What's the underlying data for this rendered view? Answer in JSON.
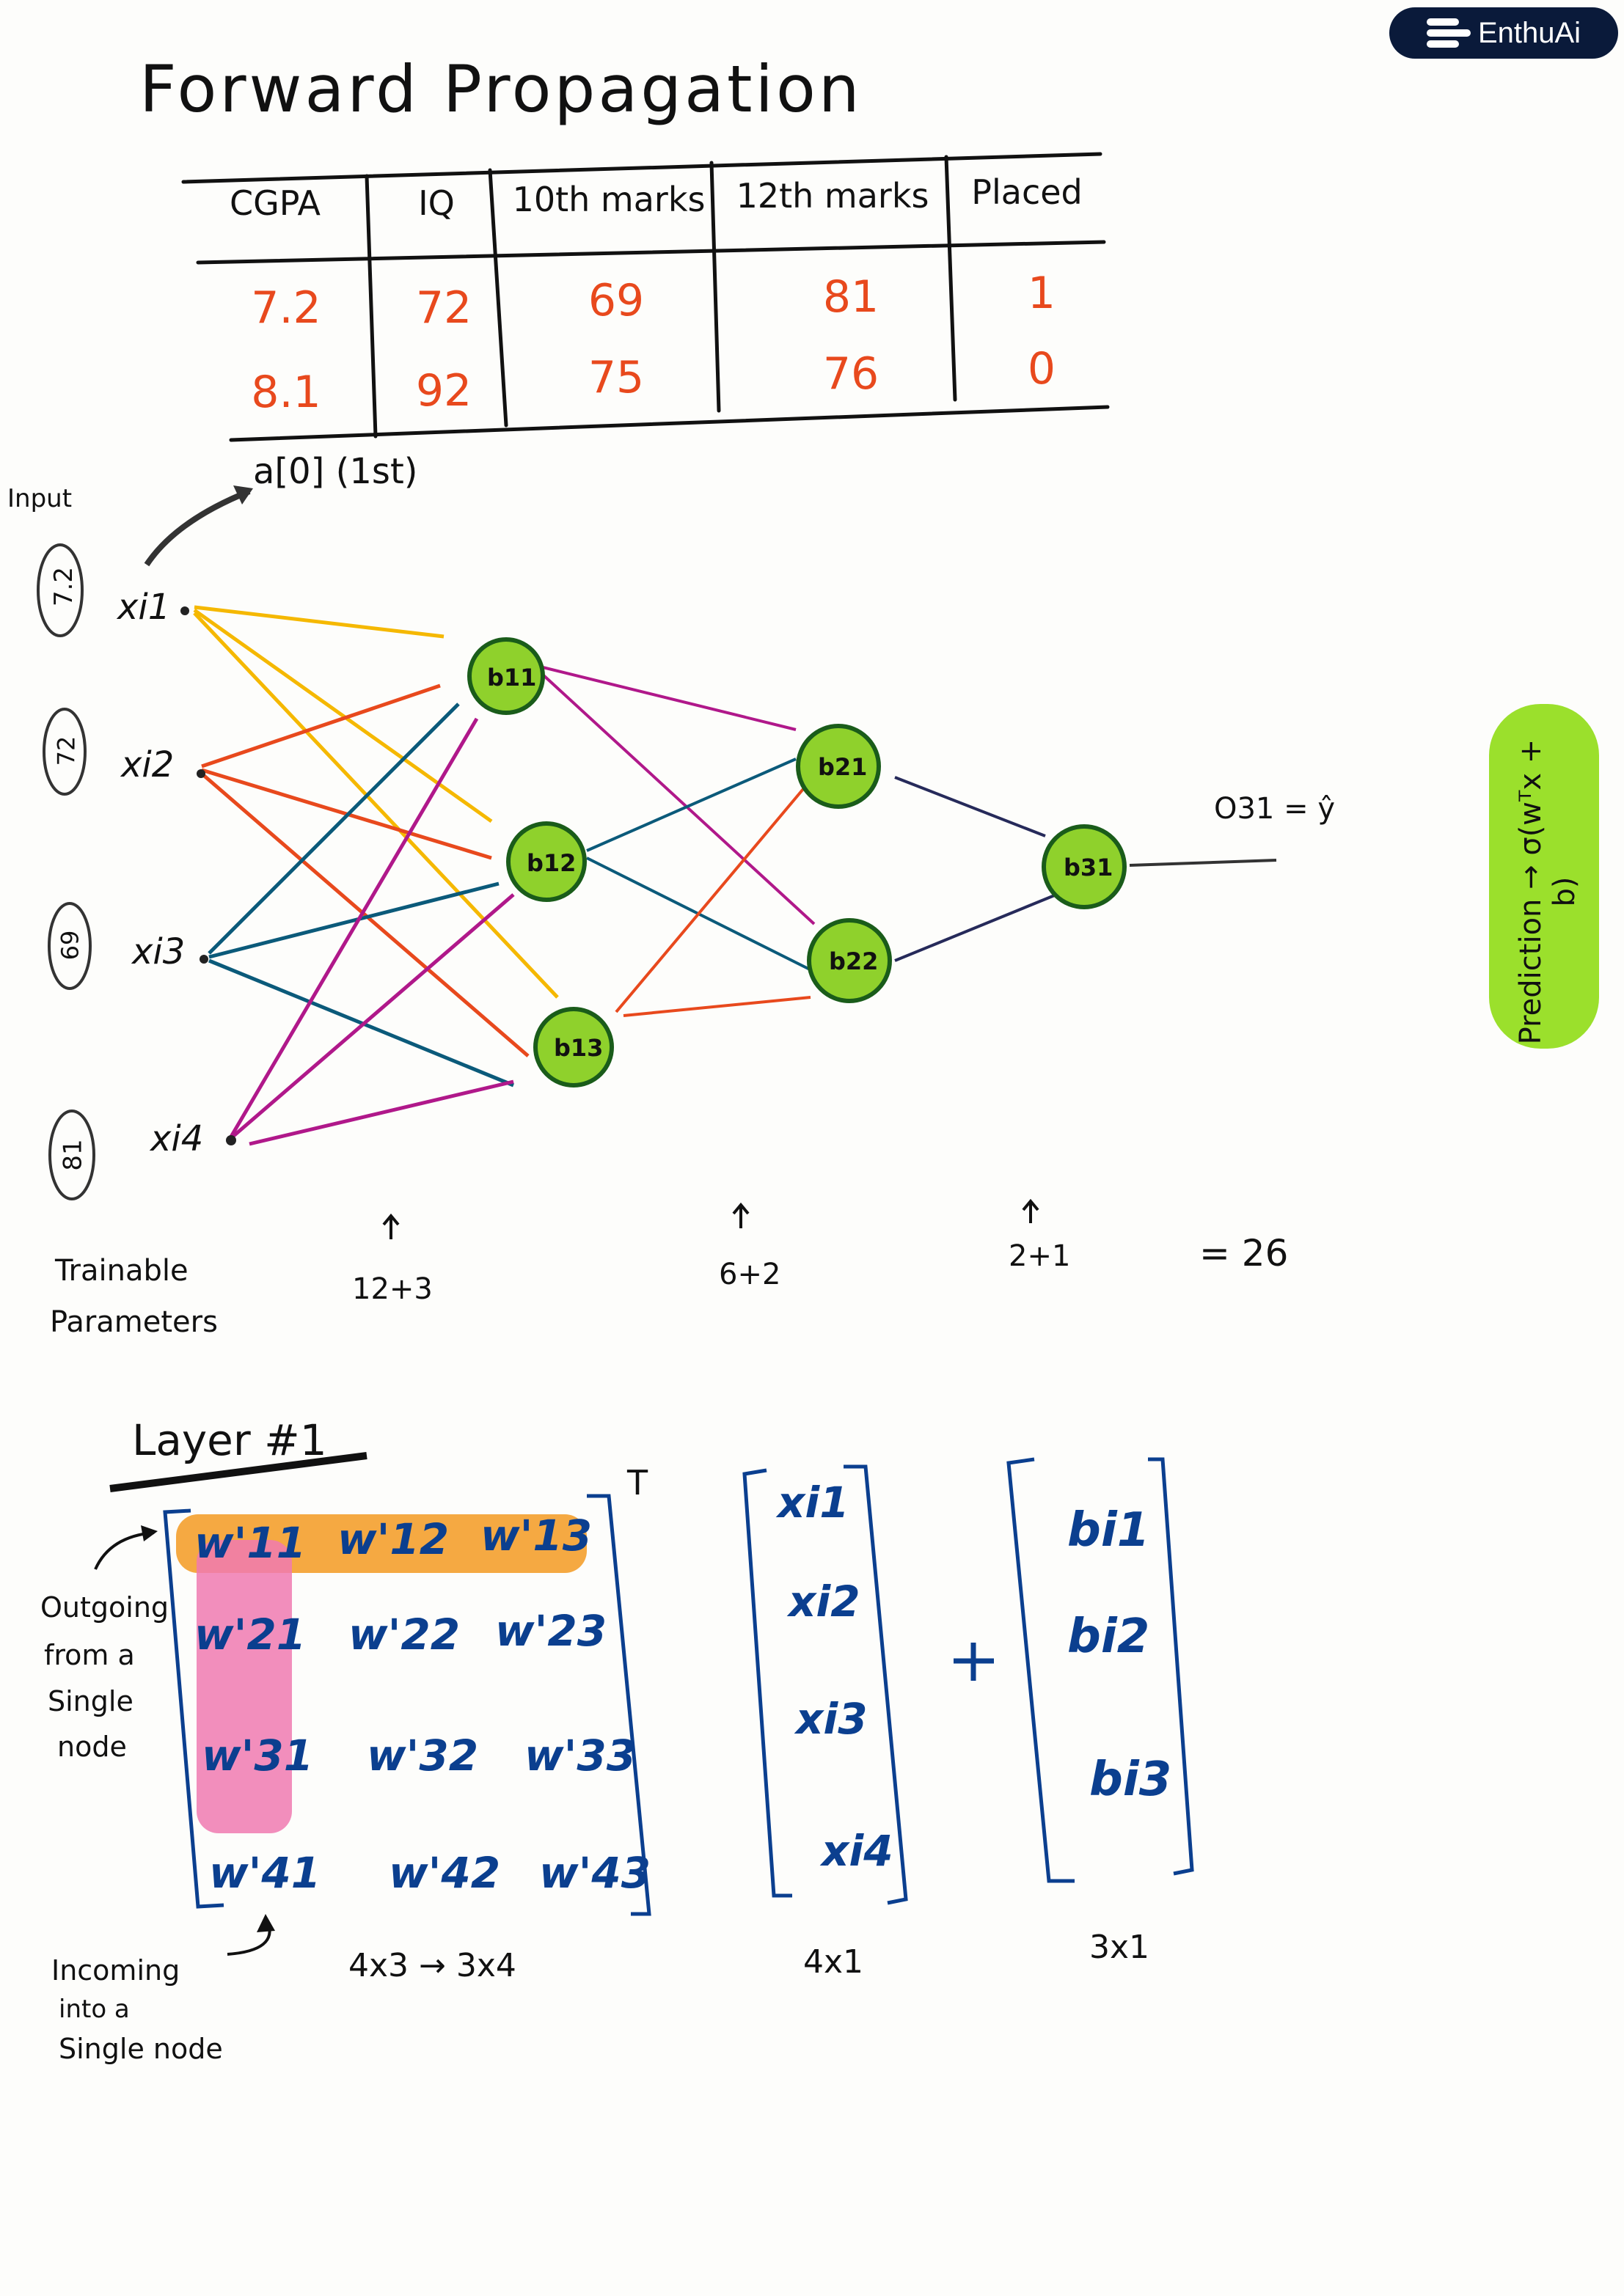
{
  "brand": {
    "logo_text": "EnthuAi"
  },
  "title": "Forward Propagation",
  "table": {
    "headers": [
      "CGPA",
      "IQ",
      "10th marks",
      "12th marks",
      "Placed"
    ],
    "rows": [
      [
        "7.2",
        "72",
        "69",
        "81",
        "1"
      ],
      [
        "8.1",
        "92",
        "75",
        "76",
        "0"
      ]
    ]
  },
  "annotations": {
    "input_label": "Input",
    "a0_label": "a[0] (1st)",
    "output_label": "O31 = ŷ",
    "prediction_note": "Prediction → σ(wᵀx + b)"
  },
  "inputs": [
    {
      "value": "7.2",
      "label": "xi1"
    },
    {
      "value": "72",
      "label": "xi2"
    },
    {
      "value": "69",
      "label": "xi3"
    },
    {
      "value": "81",
      "label": "xi4"
    }
  ],
  "nodes": {
    "hidden1": [
      "b11",
      "b12",
      "b13"
    ],
    "hidden2": [
      "b21",
      "b22"
    ],
    "output": [
      "b31"
    ]
  },
  "params": {
    "label_line1": "Trainable",
    "label_line2": "Parameters",
    "layer1": "12+3",
    "layer2": "6+2",
    "layer3": "2+1",
    "total": "= 26"
  },
  "layer1": {
    "heading": "Layer #1",
    "transpose": "T",
    "weights": [
      [
        "w'11",
        "w'12",
        "w'13"
      ],
      [
        "w'21",
        "w'22",
        "w'23"
      ],
      [
        "w'31",
        "w'32",
        "w'33"
      ],
      [
        "w'41",
        "w'42",
        "w'43"
      ]
    ],
    "x_vector": [
      "xi1",
      "xi2",
      "xi3",
      "xi4"
    ],
    "plus": "+",
    "b_vector": [
      "bi1",
      "bi2",
      "bi3"
    ],
    "dim_weights": "4x3 → 3x4",
    "dim_x": "4x1",
    "dim_b": "3x1",
    "outgoing_note": [
      "Outgoing",
      "from a",
      "Single",
      "node"
    ],
    "incoming_note": [
      "Incoming",
      "into a",
      "Single node"
    ]
  }
}
